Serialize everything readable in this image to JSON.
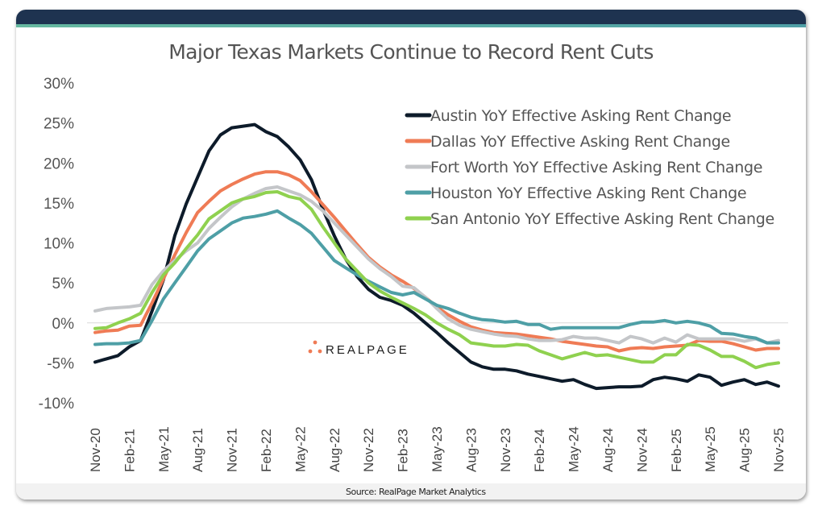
{
  "chart_data": {
    "type": "line",
    "title": "Major Texas Markets Continue to Record Rent Cuts",
    "source": "Source: RealPage Market Analytics",
    "xlabel": "",
    "ylabel": "",
    "ylim": [
      -10,
      30
    ],
    "yticks": [
      "30%",
      "25%",
      "20%",
      "15%",
      "10%",
      "5%",
      "0%",
      "-5%",
      "-10%"
    ],
    "ytick_values": [
      30,
      25,
      20,
      15,
      10,
      5,
      0,
      -5,
      -10
    ],
    "xticks": [
      "Nov-20",
      "Feb-21",
      "May-21",
      "Aug-21",
      "Nov-21",
      "Feb-22",
      "May-22",
      "Aug-22",
      "Nov-22",
      "Feb-23",
      "May-23",
      "Aug-23",
      "Nov-23",
      "Feb-24",
      "May-24",
      "Aug-24",
      "Nov-24",
      "Feb-25",
      "May-25",
      "Aug-25",
      "Nov-25"
    ],
    "x_range": [
      "Nov-20",
      "Nov-25"
    ],
    "x_frequency": "monthly",
    "grid": false,
    "zero_line": true,
    "legend_position": "top-right",
    "logo": "REALPAGE",
    "series": [
      {
        "name": "Austin YoY Effective Asking Rent Change",
        "color": "#0d1b2a",
        "values": [
          -4.9,
          -4.5,
          -4.1,
          -3.0,
          -2.2,
          1.5,
          5.4,
          10.9,
          14.9,
          18.2,
          21.5,
          23.5,
          24.4,
          24.6,
          24.8,
          23.9,
          23.3,
          22.0,
          20.4,
          17.9,
          14.2,
          10.9,
          8.0,
          5.8,
          4.2,
          3.2,
          2.8,
          2.2,
          1.2,
          0.0,
          -1.2,
          -2.5,
          -3.7,
          -4.9,
          -5.5,
          -5.8,
          -5.8,
          -6.0,
          -6.4,
          -6.7,
          -7.0,
          -7.3,
          -7.1,
          -7.7,
          -8.2,
          -8.1,
          -8.0,
          -8.0,
          -7.9,
          -7.1,
          -6.8,
          -7.0,
          -7.3,
          -6.5,
          -6.8,
          -7.8,
          -7.4,
          -7.1,
          -7.7,
          -7.4,
          -7.9
        ]
      },
      {
        "name": "Dallas YoY Effective Asking Rent Change",
        "color": "#ef7b55",
        "values": [
          -1.2,
          -1.0,
          -0.9,
          -0.4,
          -0.3,
          2.5,
          5.5,
          8.5,
          11.3,
          13.8,
          15.2,
          16.5,
          17.3,
          18.0,
          18.6,
          18.9,
          18.9,
          18.5,
          17.8,
          16.4,
          14.8,
          13.2,
          11.5,
          9.8,
          8.2,
          7.0,
          6.0,
          5.2,
          4.3,
          3.2,
          2.0,
          1.0,
          0.2,
          -0.5,
          -0.9,
          -1.2,
          -1.3,
          -1.4,
          -1.6,
          -1.8,
          -2.0,
          -2.3,
          -2.5,
          -2.7,
          -2.9,
          -3.0,
          -3.5,
          -3.2,
          -3.1,
          -3.2,
          -3.0,
          -2.9,
          -2.8,
          -2.2,
          -2.3,
          -2.3,
          -2.6,
          -3.0,
          -3.4,
          -3.2,
          -3.2
        ]
      },
      {
        "name": "Fort Worth YoY Effective Asking Rent Change",
        "color": "#c4c6c9",
        "values": [
          1.5,
          1.8,
          1.9,
          2.0,
          2.2,
          4.8,
          6.5,
          7.8,
          9.0,
          10.0,
          11.8,
          13.2,
          14.5,
          15.5,
          16.2,
          16.8,
          17.0,
          16.5,
          16.0,
          15.2,
          14.0,
          12.5,
          11.0,
          9.5,
          8.0,
          6.8,
          5.8,
          4.6,
          4.4,
          3.2,
          1.8,
          0.5,
          -0.3,
          -0.8,
          -1.1,
          -1.4,
          -1.6,
          -1.7,
          -2.0,
          -2.2,
          -2.2,
          -2.1,
          -1.7,
          -1.9,
          -1.9,
          -2.2,
          -2.5,
          -1.7,
          -2.0,
          -2.5,
          -1.9,
          -2.4,
          -1.5,
          -2.0,
          -2.0,
          -2.0,
          -2.0,
          -2.3,
          -2.0,
          -2.5,
          -2.2
        ]
      },
      {
        "name": "Houston YoY Effective Asking Rent Change",
        "color": "#4e9fa6",
        "values": [
          -2.7,
          -2.6,
          -2.6,
          -2.5,
          -2.2,
          0.3,
          3.0,
          5.0,
          7.0,
          9.0,
          10.5,
          11.5,
          12.5,
          13.1,
          13.3,
          13.6,
          14.0,
          13.1,
          12.3,
          11.2,
          9.5,
          7.8,
          6.9,
          6.0,
          5.2,
          4.5,
          3.8,
          3.5,
          3.8,
          3.0,
          2.2,
          1.8,
          1.2,
          0.7,
          0.4,
          0.3,
          0.1,
          0.2,
          -0.2,
          -0.2,
          -0.8,
          -0.6,
          -0.6,
          -0.6,
          -0.6,
          -0.6,
          -0.6,
          -0.2,
          0.1,
          0.1,
          0.3,
          0.0,
          0.2,
          0.0,
          -0.4,
          -1.3,
          -1.4,
          -1.7,
          -1.9,
          -2.5,
          -2.5
        ]
      },
      {
        "name": "San Antonio YoY Effective Asking Rent Change",
        "color": "#8fd14f",
        "values": [
          -0.7,
          -0.6,
          0.0,
          0.5,
          1.2,
          3.8,
          6.0,
          7.5,
          9.3,
          11.0,
          13.0,
          14.0,
          15.0,
          15.5,
          15.8,
          16.3,
          16.4,
          15.8,
          15.5,
          14.2,
          12.0,
          10.0,
          8.0,
          6.5,
          5.0,
          4.0,
          3.2,
          2.5,
          1.8,
          1.0,
          0.0,
          -0.8,
          -1.5,
          -2.5,
          -2.7,
          -2.9,
          -2.9,
          -2.7,
          -2.8,
          -3.5,
          -4.0,
          -4.5,
          -4.1,
          -3.7,
          -4.1,
          -4.0,
          -4.3,
          -4.6,
          -4.9,
          -4.9,
          -4.0,
          -4.0,
          -2.7,
          -2.8,
          -3.4,
          -4.2,
          -4.2,
          -4.8,
          -5.6,
          -5.2,
          -5.0
        ]
      }
    ]
  }
}
